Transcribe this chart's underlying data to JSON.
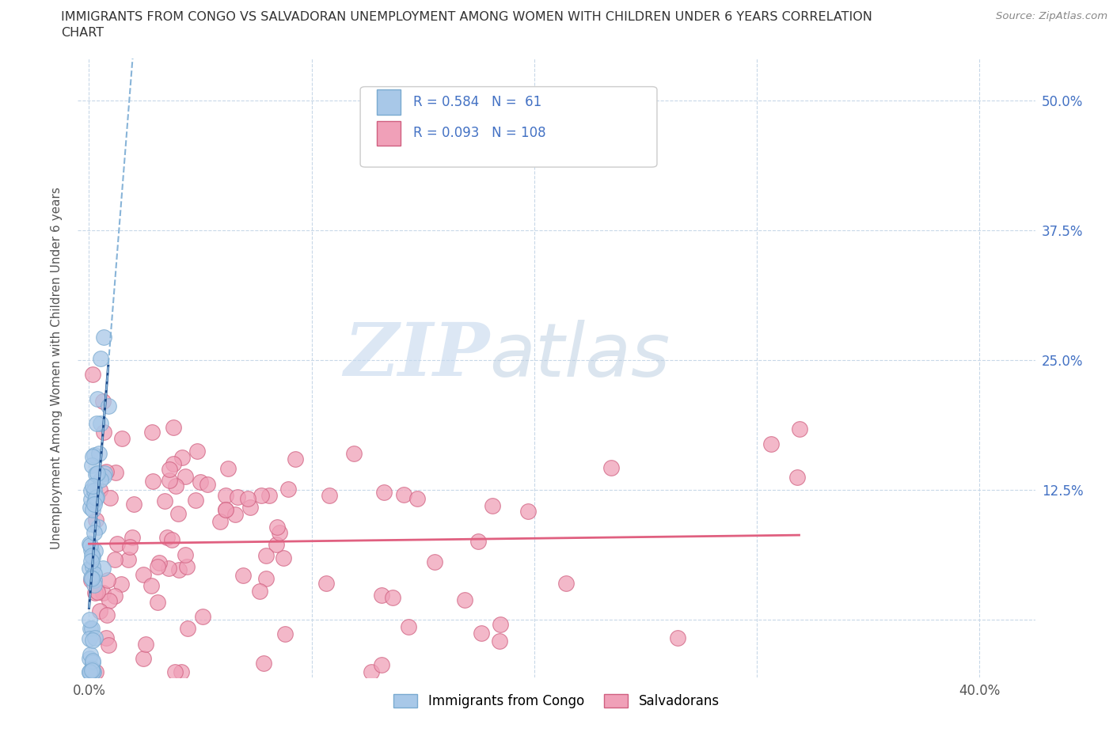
{
  "title_line1": "IMMIGRANTS FROM CONGO VS SALVADORAN UNEMPLOYMENT AMONG WOMEN WITH CHILDREN UNDER 6 YEARS CORRELATION",
  "title_line2": "CHART",
  "source": "Source: ZipAtlas.com",
  "ylabel": "Unemployment Among Women with Children Under 6 years",
  "xlabel_ticks": [
    "0.0%",
    "",
    "",
    "",
    "40.0%"
  ],
  "xlabel_vals": [
    0.0,
    0.1,
    0.2,
    0.3,
    0.4
  ],
  "ylabel_ticks": [
    "",
    "12.5%",
    "25.0%",
    "37.5%",
    "50.0%"
  ],
  "ylabel_vals": [
    0.0,
    0.125,
    0.25,
    0.375,
    0.5
  ],
  "xlim": [
    -0.005,
    0.425
  ],
  "ylim": [
    -0.055,
    0.54
  ],
  "watermark_zip": "ZIP",
  "watermark_atlas": "atlas",
  "legend_R1": "R = 0.584",
  "legend_N1": "N =  61",
  "legend_R2": "R = 0.093",
  "legend_N2": "N = 108",
  "congo_color": "#a8c8e8",
  "congo_color_edge": "#7aaad0",
  "salvador_color": "#f0a0b8",
  "salvador_color_edge": "#d06080",
  "trendline_blue_solid": "#1a4a8a",
  "trendline_blue_dash": "#88b4d8",
  "trendline_pink": "#e06080",
  "background_color": "#ffffff",
  "gridcolor": "#c8d8e8",
  "grid_linestyle": "--",
  "tick_color": "#4472C4",
  "ylabel_color": "#555555",
  "title_color": "#333333",
  "source_color": "#888888"
}
